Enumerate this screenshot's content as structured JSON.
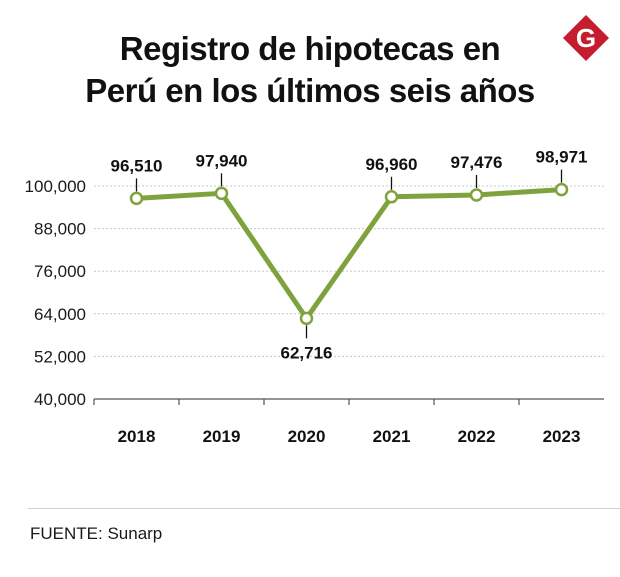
{
  "title": {
    "line1": "Registro de hipotecas en",
    "line2": "Perú en los últimos seis años"
  },
  "logo": {
    "letter": "G",
    "icon": "brand-g-logo",
    "color": "#c41e2e"
  },
  "colors": {
    "line": "#7fa33c",
    "grid": "#c8c8c8",
    "axis": "#555555",
    "marker_fill": "#ffffff"
  },
  "footer": {
    "source": "FUENTE: Sunarp"
  },
  "chart_data": {
    "type": "line",
    "title": "Registro de hipotecas en Perú en los últimos seis años",
    "xlabel": "",
    "ylabel": "",
    "categories": [
      "2018",
      "2019",
      "2020",
      "2021",
      "2022",
      "2023"
    ],
    "series": [
      {
        "name": "Registro de hipotecas",
        "values": [
          96510,
          97940,
          62716,
          96960,
          97476,
          98971
        ]
      }
    ],
    "data_labels": [
      "96,510",
      "97,940",
      "62,716",
      "96,960",
      "97,476",
      "98,971"
    ],
    "data_label_positions": [
      "above",
      "above",
      "below",
      "above",
      "above",
      "above"
    ],
    "yticks": [
      40000,
      52000,
      64000,
      76000,
      88000,
      100000
    ],
    "ytick_labels": [
      "40,000",
      "52,000",
      "64,000",
      "76,000",
      "88,000",
      "100,000"
    ],
    "ylim": [
      40000,
      100000
    ],
    "grid": true
  }
}
